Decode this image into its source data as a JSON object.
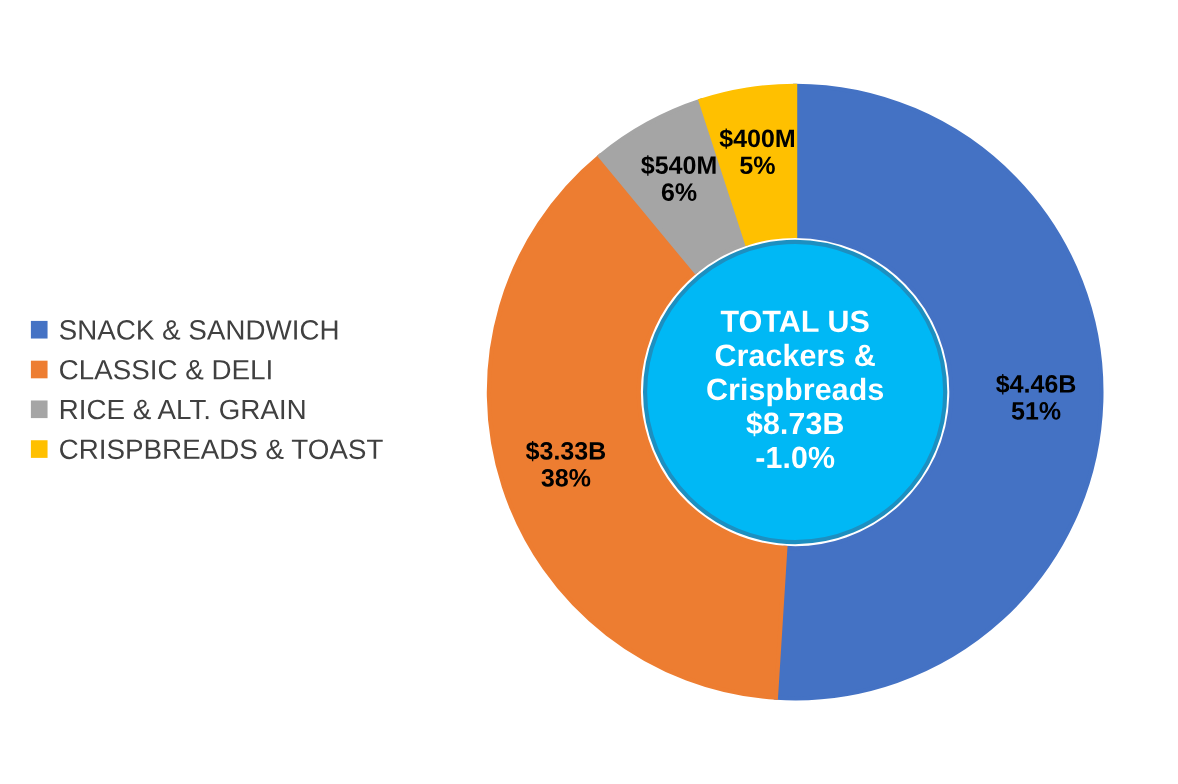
{
  "chart_data": {
    "type": "donut",
    "categories": [
      "SNACK & SANDWICH",
      "CLASSIC & DELI",
      "RICE & ALT. GRAIN",
      "CRISPBREADS & TOAST"
    ],
    "values": [
      51,
      38,
      6,
      5
    ],
    "colors": [
      "#4472c4",
      "#ed7d31",
      "#a5a5a5",
      "#ffc000"
    ],
    "value_labels": [
      "$4.46B\n51%",
      "$3.33B\n38%",
      "$540M\n6%",
      "$400M\n5%"
    ],
    "annotations": [
      "TOTAL US\nCrackers &\nCrispbreads\n$8.73B\n-1.0%"
    ],
    "legend": "left"
  }
}
